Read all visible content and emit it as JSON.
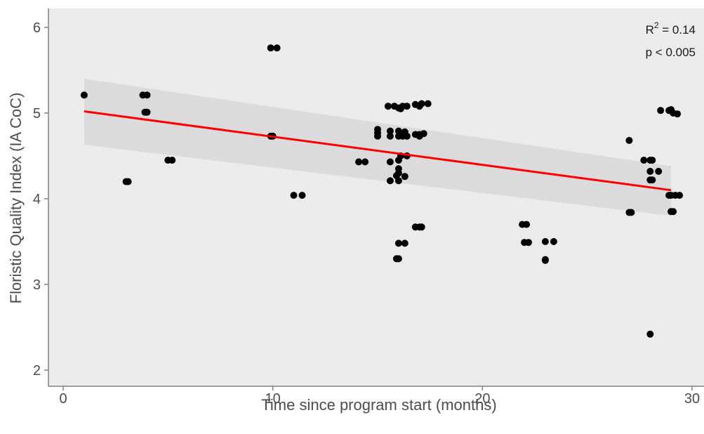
{
  "chart_data": {
    "type": "scatter",
    "title": "",
    "xlabel": "Time since program start (months)",
    "ylabel": "Floristic Quality Index (IA CoC)",
    "xlim": [
      -0.2,
      30.2
    ],
    "ylim": [
      1.75,
      6.2
    ],
    "xticks": [
      0,
      10,
      20,
      30
    ],
    "yticks": [
      2,
      3,
      4,
      5,
      6
    ],
    "grid": false,
    "colors": {
      "points": "#000000",
      "fit_line": "#ff0000",
      "ribbon": "#d9d9d9",
      "background": "#ebebeb",
      "axis": "#808080"
    },
    "points": [
      {
        "x": 1.0,
        "y": 5.21
      },
      {
        "x": 3.0,
        "y": 4.2
      },
      {
        "x": 3.1,
        "y": 4.2
      },
      {
        "x": 3.8,
        "y": 5.21
      },
      {
        "x": 4.0,
        "y": 5.21
      },
      {
        "x": 3.9,
        "y": 5.01
      },
      {
        "x": 4.0,
        "y": 5.01
      },
      {
        "x": 5.0,
        "y": 4.45
      },
      {
        "x": 5.2,
        "y": 4.45
      },
      {
        "x": 9.9,
        "y": 5.76
      },
      {
        "x": 10.2,
        "y": 5.76
      },
      {
        "x": 9.9,
        "y": 4.73
      },
      {
        "x": 10.0,
        "y": 4.73
      },
      {
        "x": 11.0,
        "y": 4.04
      },
      {
        "x": 11.4,
        "y": 4.04
      },
      {
        "x": 14.1,
        "y": 4.43
      },
      {
        "x": 14.4,
        "y": 4.43
      },
      {
        "x": 15.0,
        "y": 4.81
      },
      {
        "x": 15.0,
        "y": 4.77
      },
      {
        "x": 15.0,
        "y": 4.73
      },
      {
        "x": 15.5,
        "y": 5.08
      },
      {
        "x": 15.8,
        "y": 5.08
      },
      {
        "x": 16.0,
        "y": 5.06
      },
      {
        "x": 16.1,
        "y": 5.05
      },
      {
        "x": 16.2,
        "y": 5.08
      },
      {
        "x": 16.4,
        "y": 5.08
      },
      {
        "x": 15.6,
        "y": 4.79
      },
      {
        "x": 16.0,
        "y": 4.79
      },
      {
        "x": 16.3,
        "y": 4.78
      },
      {
        "x": 15.6,
        "y": 4.73
      },
      {
        "x": 16.0,
        "y": 4.73
      },
      {
        "x": 16.2,
        "y": 4.73
      },
      {
        "x": 16.4,
        "y": 4.73
      },
      {
        "x": 15.6,
        "y": 4.43
      },
      {
        "x": 16.0,
        "y": 4.45
      },
      {
        "x": 16.1,
        "y": 4.5
      },
      {
        "x": 16.4,
        "y": 4.5
      },
      {
        "x": 16.0,
        "y": 4.35
      },
      {
        "x": 16.0,
        "y": 4.3
      },
      {
        "x": 15.9,
        "y": 4.27
      },
      {
        "x": 16.3,
        "y": 4.26
      },
      {
        "x": 15.6,
        "y": 4.21
      },
      {
        "x": 16.0,
        "y": 4.21
      },
      {
        "x": 16.0,
        "y": 3.48
      },
      {
        "x": 16.3,
        "y": 3.48
      },
      {
        "x": 15.9,
        "y": 3.3
      },
      {
        "x": 16.0,
        "y": 3.3
      },
      {
        "x": 16.8,
        "y": 5.1
      },
      {
        "x": 17.0,
        "y": 5.08
      },
      {
        "x": 17.1,
        "y": 5.11
      },
      {
        "x": 17.4,
        "y": 5.11
      },
      {
        "x": 16.8,
        "y": 4.75
      },
      {
        "x": 17.0,
        "y": 4.75
      },
      {
        "x": 17.2,
        "y": 4.76
      },
      {
        "x": 17.0,
        "y": 4.73
      },
      {
        "x": 16.8,
        "y": 3.67
      },
      {
        "x": 17.0,
        "y": 3.67
      },
      {
        "x": 17.1,
        "y": 3.67
      },
      {
        "x": 21.9,
        "y": 3.7
      },
      {
        "x": 22.1,
        "y": 3.7
      },
      {
        "x": 22.0,
        "y": 3.49
      },
      {
        "x": 22.2,
        "y": 3.49
      },
      {
        "x": 23.0,
        "y": 3.5
      },
      {
        "x": 23.4,
        "y": 3.5
      },
      {
        "x": 23.0,
        "y": 3.29
      },
      {
        "x": 23.0,
        "y": 3.28
      },
      {
        "x": 27.0,
        "y": 4.68
      },
      {
        "x": 27.0,
        "y": 3.84
      },
      {
        "x": 27.1,
        "y": 3.84
      },
      {
        "x": 27.7,
        "y": 4.45
      },
      {
        "x": 28.0,
        "y": 4.45
      },
      {
        "x": 28.1,
        "y": 4.45
      },
      {
        "x": 28.0,
        "y": 4.32
      },
      {
        "x": 28.4,
        "y": 4.32
      },
      {
        "x": 28.0,
        "y": 4.22
      },
      {
        "x": 28.1,
        "y": 4.22
      },
      {
        "x": 28.0,
        "y": 2.42
      },
      {
        "x": 28.5,
        "y": 5.03
      },
      {
        "x": 28.9,
        "y": 5.03
      },
      {
        "x": 29.0,
        "y": 5.04
      },
      {
        "x": 29.1,
        "y": 5.0
      },
      {
        "x": 29.3,
        "y": 4.99
      },
      {
        "x": 28.9,
        "y": 4.04
      },
      {
        "x": 29.0,
        "y": 4.04
      },
      {
        "x": 29.2,
        "y": 4.04
      },
      {
        "x": 29.4,
        "y": 4.04
      },
      {
        "x": 29.0,
        "y": 3.85
      },
      {
        "x": 29.1,
        "y": 3.85
      }
    ],
    "fit": {
      "x": [
        1,
        29
      ],
      "y": [
        5.02,
        4.1
      ]
    },
    "confidence_band": {
      "x": [
        1,
        29
      ],
      "upper": [
        5.4,
        4.38
      ],
      "lower": [
        4.63,
        3.8
      ]
    },
    "annotations": {
      "r2_label": "R",
      "r2_superscript": "2",
      "r2_value": " = 0.14",
      "p_text": "p < 0.005"
    }
  }
}
